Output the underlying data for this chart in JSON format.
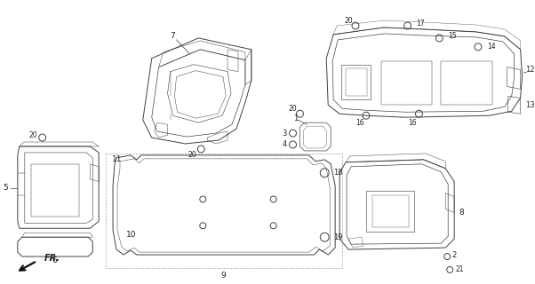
{
  "bg_color": "#ffffff",
  "line_color": "#404040",
  "text_color": "#222222",
  "fig_width": 6.02,
  "fig_height": 3.2,
  "dpi": 100
}
